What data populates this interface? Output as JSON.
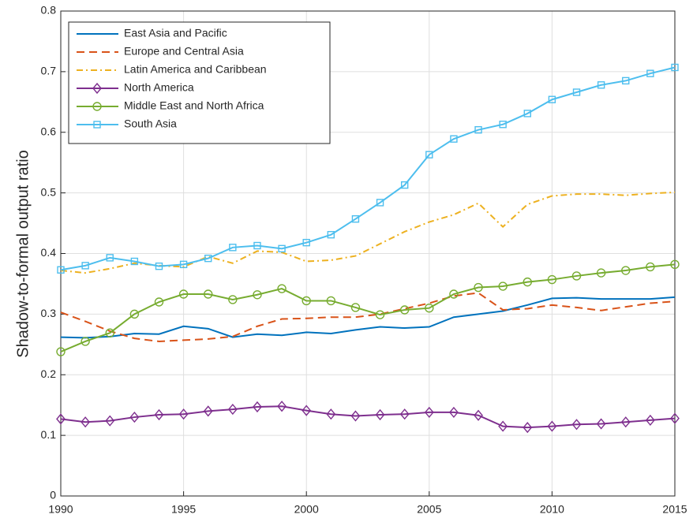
{
  "chart_data": {
    "type": "line",
    "ylabel": "Shadow-to-formal output ratio",
    "x": [
      1990,
      1991,
      1992,
      1993,
      1994,
      1995,
      1996,
      1997,
      1998,
      1999,
      2000,
      2001,
      2002,
      2003,
      2004,
      2005,
      2006,
      2007,
      2008,
      2009,
      2010,
      2011,
      2012,
      2013,
      2014,
      2015
    ],
    "series": [
      {
        "name": "East Asia and Pacific",
        "color": "#0072BD",
        "dash": "solid",
        "values": [
          0.262,
          0.261,
          0.263,
          0.268,
          0.267,
          0.28,
          0.276,
          0.262,
          0.267,
          0.265,
          0.27,
          0.268,
          0.274,
          0.279,
          0.277,
          0.279,
          0.295,
          0.3,
          0.305,
          0.315,
          0.326,
          0.327,
          0.325,
          0.325,
          0.325,
          0.328
        ]
      },
      {
        "name": "Europe and Central Asia",
        "color": "#D95319",
        "dash": "dashed",
        "values": [
          0.303,
          0.288,
          0.272,
          0.26,
          0.255,
          0.257,
          0.259,
          0.263,
          0.28,
          0.292,
          0.293,
          0.295,
          0.295,
          0.3,
          0.309,
          0.318,
          0.33,
          0.335,
          0.307,
          0.309,
          0.315,
          0.311,
          0.306,
          0.312,
          0.318,
          0.321
        ]
      },
      {
        "name": "Latin America and Caribbean",
        "color": "#EDB120",
        "dash": "dashdot",
        "values": [
          0.372,
          0.368,
          0.375,
          0.384,
          0.38,
          0.378,
          0.395,
          0.384,
          0.404,
          0.402,
          0.387,
          0.389,
          0.396,
          0.416,
          0.436,
          0.452,
          0.464,
          0.483,
          0.444,
          0.481,
          0.495,
          0.498,
          0.498,
          0.496,
          0.499,
          0.501
        ]
      },
      {
        "name": "North America",
        "color": "#7E2F8E",
        "dash": "solid",
        "marker": "diamond",
        "values": [
          0.127,
          0.122,
          0.124,
          0.13,
          0.134,
          0.135,
          0.14,
          0.143,
          0.147,
          0.148,
          0.141,
          0.135,
          0.132,
          0.134,
          0.135,
          0.138,
          0.138,
          0.133,
          0.115,
          0.113,
          0.115,
          0.118,
          0.119,
          0.122,
          0.125,
          0.128
        ]
      },
      {
        "name": "Middle East and North Africa",
        "color": "#77AC30",
        "dash": "solid",
        "marker": "circle",
        "values": [
          0.238,
          0.255,
          0.269,
          0.3,
          0.32,
          0.333,
          0.333,
          0.324,
          0.332,
          0.342,
          0.322,
          0.322,
          0.311,
          0.299,
          0.307,
          0.31,
          0.333,
          0.344,
          0.346,
          0.353,
          0.357,
          0.363,
          0.368,
          0.372,
          0.378,
          0.382
        ]
      },
      {
        "name": "South Asia",
        "color": "#4DBEEE",
        "dash": "solid",
        "marker": "square",
        "values": [
          0.373,
          0.38,
          0.393,
          0.387,
          0.379,
          0.382,
          0.392,
          0.41,
          0.413,
          0.408,
          0.418,
          0.431,
          0.457,
          0.484,
          0.513,
          0.563,
          0.589,
          0.604,
          0.613,
          0.631,
          0.654,
          0.666,
          0.678,
          0.685,
          0.697,
          0.707
        ]
      }
    ],
    "xlim": [
      1990,
      2015
    ],
    "xticks": [
      1990,
      1995,
      2000,
      2005,
      2010,
      2015
    ],
    "ylim": [
      0,
      0.8
    ],
    "yticks": [
      0,
      0.1,
      0.2,
      0.3,
      0.4,
      0.5,
      0.6,
      0.7,
      0.8
    ],
    "grid": true,
    "legend": "upper-left"
  }
}
